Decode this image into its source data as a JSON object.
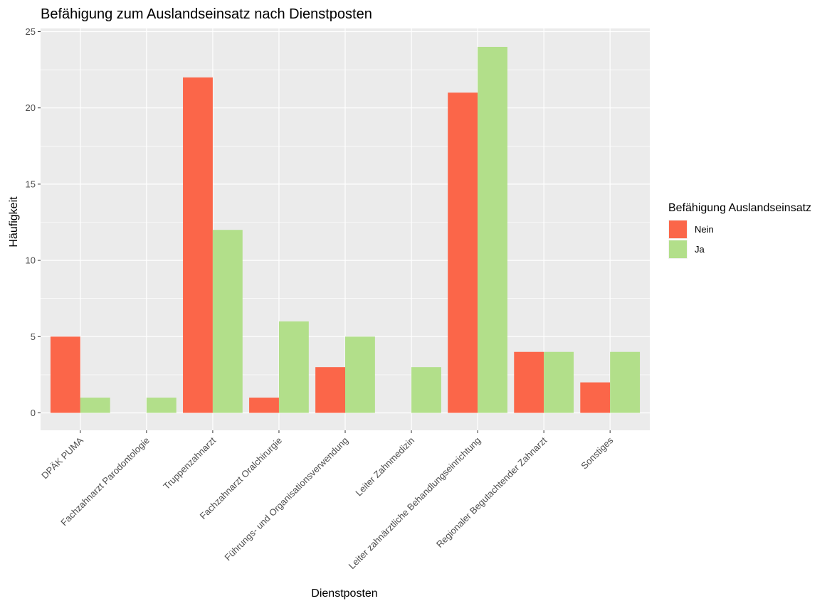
{
  "chart_data": {
    "type": "bar",
    "title": "Befähigung zum Auslandseinsatz nach Dienstposten",
    "xlabel": "Dienstposten",
    "ylabel": "Häufigkeit",
    "ylim": [
      0,
      25
    ],
    "yticks": [
      0,
      5,
      10,
      15,
      20,
      25
    ],
    "grid": true,
    "legend_position": "right",
    "legend_title": "Befähigung Auslandseinsatz",
    "categories": [
      "DPÄK PUMA",
      "Fachzahnarzt Parodontologie",
      "Truppenzahnarzt",
      "Fachzahnarzt Oralchirurgie",
      "Führungs- und Organisationsverwendung",
      "Leiter Zahnmedizin",
      "Leiter zahnärztliche Behandlungseinrichtung",
      "Regionaler Begutachtender Zahnarzt",
      "Sonstiges"
    ],
    "series": [
      {
        "name": "Nein",
        "color": "#FB6649",
        "values": [
          5,
          0,
          22,
          1,
          3,
          0,
          21,
          4,
          2
        ]
      },
      {
        "name": "Ja",
        "color": "#B2DF8A",
        "values": [
          1,
          1,
          12,
          6,
          5,
          3,
          24,
          4,
          4
        ]
      }
    ],
    "panel_background": "#EBEBEB",
    "grid_color": "#FFFFFF"
  }
}
